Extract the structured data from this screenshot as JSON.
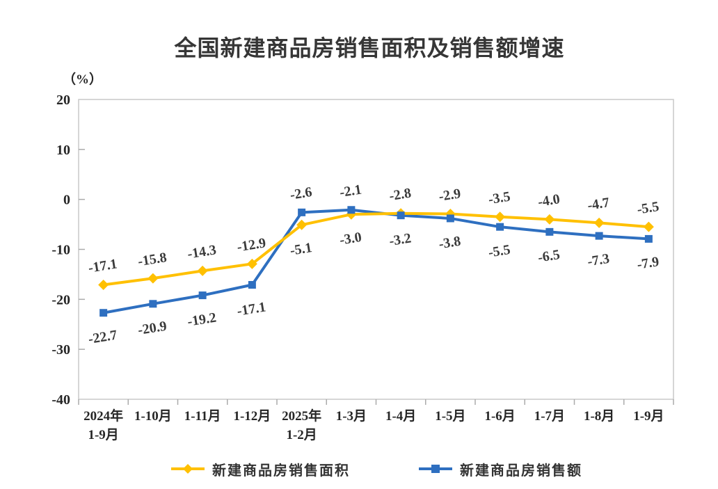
{
  "chart_data": {
    "type": "line",
    "title": "全国新建商品房销售面积及销售额增速",
    "ylabel": "（%）",
    "xlabel": "",
    "ylim": [
      -40,
      20
    ],
    "ytick_step": 10,
    "yticks": [
      20,
      10,
      0,
      -10,
      -20,
      -30,
      -40
    ],
    "grid": false,
    "legend_position": "bottom",
    "data_labels_shown": true,
    "categories": [
      "2024年\n1-9月",
      "1-10月",
      "1-11月",
      "1-12月",
      "2025年\n1-2月",
      "1-3月",
      "1-4月",
      "1-5月",
      "1-6月",
      "1-7月",
      "1-8月",
      "1-9月"
    ],
    "series": [
      {
        "key": "sales-area",
        "name": "新建商品房销售面积",
        "color": "#FFC000",
        "marker": "diamond",
        "values": [
          -17.1,
          -15.8,
          -14.3,
          -12.9,
          -5.1,
          -3.0,
          -2.8,
          -2.9,
          -3.5,
          -4.0,
          -4.7,
          -5.5
        ]
      },
      {
        "key": "sales-amount",
        "name": "新建商品房销售额",
        "color": "#2E6FC0",
        "marker": "square",
        "values": [
          -22.7,
          -20.9,
          -19.2,
          -17.1,
          -2.6,
          -2.1,
          -3.2,
          -3.8,
          -5.5,
          -6.5,
          -7.3,
          -7.9
        ]
      }
    ],
    "style": {
      "axis_border_color": "#C9C9C9",
      "tick_color": "#ABABAB",
      "axis_text_color": "#262626",
      "data_label_color": "#3A3A3A",
      "background": "#FFFFFF"
    }
  }
}
